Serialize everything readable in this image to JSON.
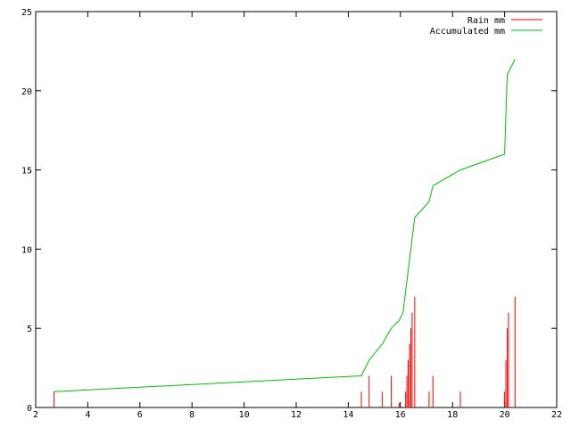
{
  "chart_data": {
    "type": "bar+line",
    "title": "",
    "xlabel": "",
    "ylabel": "",
    "xlim": [
      2,
      22
    ],
    "ylim": [
      0,
      25
    ],
    "x_ticks": [
      2,
      4,
      6,
      8,
      10,
      12,
      14,
      16,
      18,
      20,
      22
    ],
    "y_ticks": [
      0,
      5,
      10,
      15,
      20,
      25
    ],
    "grid": false,
    "legend_position": "top-right",
    "series": [
      {
        "name": "Rain mm",
        "kind": "impulses",
        "color": "#ff0000",
        "points": [
          [
            2.7,
            1
          ],
          [
            14.5,
            1
          ],
          [
            14.8,
            2
          ],
          [
            15.3,
            1
          ],
          [
            15.65,
            2
          ],
          [
            15.95,
            0.3
          ],
          [
            16.2,
            1
          ],
          [
            16.25,
            2
          ],
          [
            16.3,
            3
          ],
          [
            16.35,
            4
          ],
          [
            16.4,
            5
          ],
          [
            16.45,
            6
          ],
          [
            16.55,
            7
          ],
          [
            17.1,
            1
          ],
          [
            17.25,
            2
          ],
          [
            18.3,
            1
          ],
          [
            20.0,
            1
          ],
          [
            20.05,
            3
          ],
          [
            20.1,
            5
          ],
          [
            20.15,
            6
          ],
          [
            20.4,
            7
          ]
        ]
      },
      {
        "name": "Accumulated mm",
        "kind": "line",
        "color": "#00c000",
        "points": [
          [
            2.7,
            1
          ],
          [
            14.5,
            2
          ],
          [
            14.8,
            3
          ],
          [
            15.3,
            4
          ],
          [
            15.65,
            5
          ],
          [
            15.95,
            5.5
          ],
          [
            16.1,
            6
          ],
          [
            16.25,
            8
          ],
          [
            16.4,
            10
          ],
          [
            16.55,
            12
          ],
          [
            17.1,
            13
          ],
          [
            17.25,
            14
          ],
          [
            18.3,
            15
          ],
          [
            20.0,
            16
          ],
          [
            20.1,
            21
          ],
          [
            20.4,
            22
          ]
        ]
      }
    ]
  }
}
